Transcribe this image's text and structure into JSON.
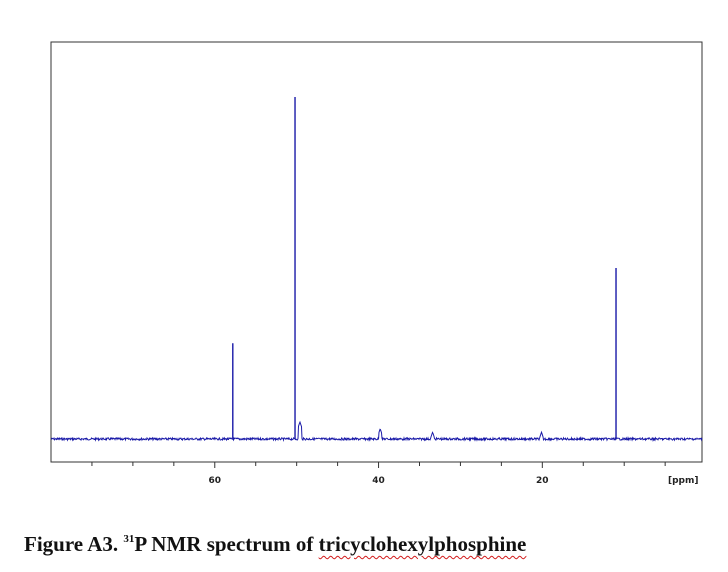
{
  "chart_data": {
    "type": "line",
    "title": "",
    "xlabel": "",
    "ylabel": "",
    "x_unit_label": "[ppm]",
    "xlim": [
      80,
      0.5
    ],
    "ylim": [
      0,
      100
    ],
    "x_reversed": true,
    "grid": false,
    "tick_labels": [
      "60",
      "40",
      "20"
    ],
    "tick_values": [
      60,
      40,
      20
    ],
    "minor_tick_values": [
      75,
      70,
      65,
      55,
      50,
      45,
      35,
      30,
      25,
      15,
      10,
      5
    ],
    "line_color": "#1a1aa8",
    "baseline": 0,
    "series": [
      {
        "peaks": [
          {
            "ppm": 57.8,
            "intensity": 28
          },
          {
            "ppm": 50.2,
            "intensity": 100
          },
          {
            "ppm": 49.6,
            "intensity": 5
          },
          {
            "ppm": 39.8,
            "intensity": 3
          },
          {
            "ppm": 33.4,
            "intensity": 2
          },
          {
            "ppm": 20.1,
            "intensity": 2
          },
          {
            "ppm": 11.0,
            "intensity": 50
          }
        ]
      }
    ]
  },
  "caption": {
    "prefix": "Figure A3. ",
    "superscript": "31",
    "middle": "P NMR spectrum of ",
    "compound": "tricyclohexylphosphine"
  }
}
